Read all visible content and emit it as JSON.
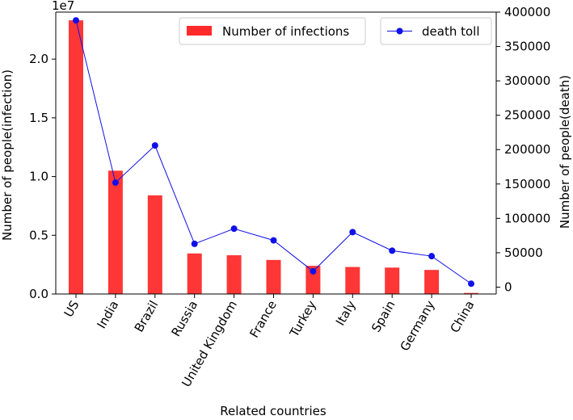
{
  "chart_data": {
    "type": "bar",
    "secondary_type": "line",
    "title": "",
    "xlabel": "Related countries",
    "ylabel_left": "Number of people(infection)",
    "ylabel_right": "Number of people(death)",
    "left_axis_multiplier": "1e7",
    "categories": [
      "US",
      "India",
      "Brazil",
      "Russia",
      "United Kingdom",
      "France",
      "Turkey",
      "Italy",
      "Spain",
      "Germany",
      "China"
    ],
    "series": [
      {
        "name": "Number of infections",
        "axis": "left",
        "type": "bar",
        "color": "#ff2b2b",
        "values": [
          23300000,
          10500000,
          8400000,
          3450000,
          3300000,
          2900000,
          2400000,
          2300000,
          2250000,
          2050000,
          90000
        ]
      },
      {
        "name": "death toll",
        "axis": "right",
        "type": "line",
        "color": "#1010e8",
        "values": [
          388000,
          152000,
          206000,
          63000,
          85000,
          68000,
          23000,
          80000,
          53000,
          45000,
          5000
        ]
      }
    ],
    "ylim_left": [
      0,
      2.4
    ],
    "ylim_right": [
      -10000,
      400000
    ],
    "left_ticks": [
      "0.0",
      "0.5",
      "1.0",
      "1.5",
      "2.0"
    ],
    "left_tick_values": [
      0,
      0.5,
      1.0,
      1.5,
      2.0
    ],
    "right_ticks": [
      "0",
      "50000",
      "100000",
      "150000",
      "200000",
      "250000",
      "300000",
      "350000",
      "400000"
    ],
    "right_tick_values": [
      0,
      50000,
      100000,
      150000,
      200000,
      250000,
      300000,
      350000,
      400000
    ],
    "legend_left_placement": "top-center",
    "legend_right_placement": "top-right",
    "grid": false
  }
}
